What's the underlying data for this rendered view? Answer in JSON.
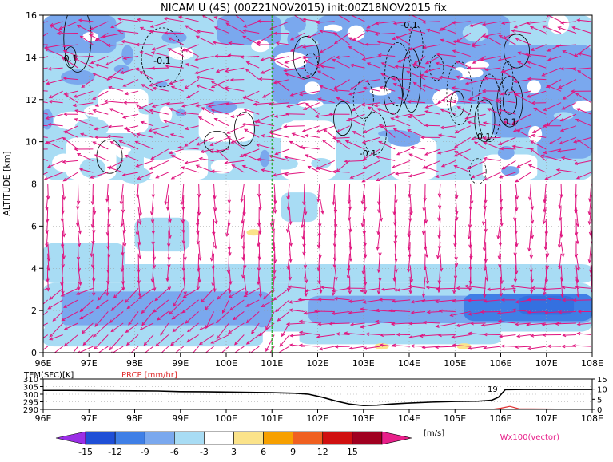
{
  "title": "NICAM U (4S) (00Z21NOV2015) init:00Z18NOV2015 fix",
  "chart_data": [
    {
      "type": "heatmap",
      "name": "Zonal wind U cross-section with wind vectors",
      "xlabel": "",
      "ylabel": "ALTITUDE [km]",
      "xlim": [
        96,
        108
      ],
      "ylim": [
        0,
        16
      ],
      "x_ticks": [
        "96E",
        "97E",
        "98E",
        "99E",
        "100E",
        "101E",
        "102E",
        "103E",
        "104E",
        "105E",
        "106E",
        "107E",
        "108E"
      ],
      "y_ticks": [
        "0",
        "2",
        "4",
        "6",
        "8",
        "10",
        "12",
        "14",
        "16"
      ],
      "grid": true,
      "marker_line_x": 101,
      "marker_line_color": "#22aa22",
      "contour_labels": [
        {
          "text": "0.1",
          "x": 96.6,
          "y": 13.8
        },
        {
          "text": "-0.1",
          "x": 98.6,
          "y": 13.7
        },
        {
          "text": "-0.1",
          "x": 104.0,
          "y": 15.4
        },
        {
          "text": "-0.1",
          "x": 103.1,
          "y": 9.3
        },
        {
          "text": "-0.1",
          "x": 105.6,
          "y": 10.1
        },
        {
          "text": "0.1",
          "x": 106.2,
          "y": 10.8
        }
      ],
      "shading": {
        "upper_band": "light blue and mid blue patches above 8 km, strongest between 102E and 108E around 11-15 km",
        "lower_band": "negative U between 1 and 3 km across the section, strongest near 105-108E",
        "positive_spots": [
          {
            "x": 100.6,
            "y": 5.7,
            "level": 3
          },
          {
            "x": 103.4,
            "y": 0.3,
            "level": 6
          },
          {
            "x": 105.2,
            "y": 0.3,
            "level": 3
          }
        ]
      },
      "vector_label": "Wx100(vector)"
    },
    {
      "type": "line",
      "name": "Surface temperature and precipitation",
      "legend": [
        {
          "name": "TEM(SFC)[K]",
          "color": "#000000"
        },
        {
          "name": "PRCP [mm/hr]",
          "color": "#e03030"
        }
      ],
      "xlim": [
        96,
        108
      ],
      "ylim_left": [
        290,
        310
      ],
      "ylim_right": [
        0,
        15
      ],
      "left_ticks": [
        "290",
        "295",
        "300",
        "305",
        "310"
      ],
      "right_ticks": [
        "0",
        "5",
        "10",
        "15"
      ],
      "x_ticks": [
        "96E",
        "97E",
        "98E",
        "99E",
        "100E",
        "101E",
        "102E",
        "103E",
        "104E",
        "105E",
        "106E",
        "107E",
        "108E"
      ],
      "tem_series": {
        "x": [
          96.0,
          96.5,
          97.0,
          97.5,
          98.0,
          98.5,
          99.0,
          99.5,
          100.0,
          100.5,
          101.0,
          101.5,
          101.8,
          102.1,
          102.4,
          102.7,
          103.0,
          103.3,
          103.6,
          104.0,
          104.5,
          105.0,
          105.5,
          105.8,
          105.95,
          106.1,
          106.5,
          107.0,
          107.5,
          108.0
        ],
        "y": [
          302.5,
          302.5,
          302.4,
          302.3,
          302.2,
          302.1,
          301.7,
          301.6,
          301.4,
          301.2,
          301.0,
          300.6,
          300.0,
          298.0,
          295.5,
          293.5,
          292.5,
          292.8,
          293.5,
          294.2,
          294.8,
          295.2,
          295.4,
          296.0,
          298.0,
          303.0,
          303.1,
          303.1,
          303.1,
          303.1
        ]
      },
      "prcp_series": {
        "x": [
          96.0,
          105.8,
          106.0,
          106.2,
          106.4,
          108.0
        ],
        "y": [
          0,
          0,
          0.6,
          1.5,
          0.3,
          0
        ]
      },
      "annotation": "19"
    }
  ],
  "colorbar": {
    "levels": [
      "-15",
      "-12",
      "-9",
      "-6",
      "-3",
      "3",
      "6",
      "9",
      "12",
      "15"
    ],
    "colors": [
      "#9a2ee6",
      "#1f4fd6",
      "#3f7fe6",
      "#7aa8ee",
      "#a8dcf4",
      "#ffffff",
      "#fbe38a",
      "#f7a000",
      "#f06020",
      "#d01010",
      "#a00020",
      "#e8208a"
    ],
    "unit": "[m/s]"
  }
}
